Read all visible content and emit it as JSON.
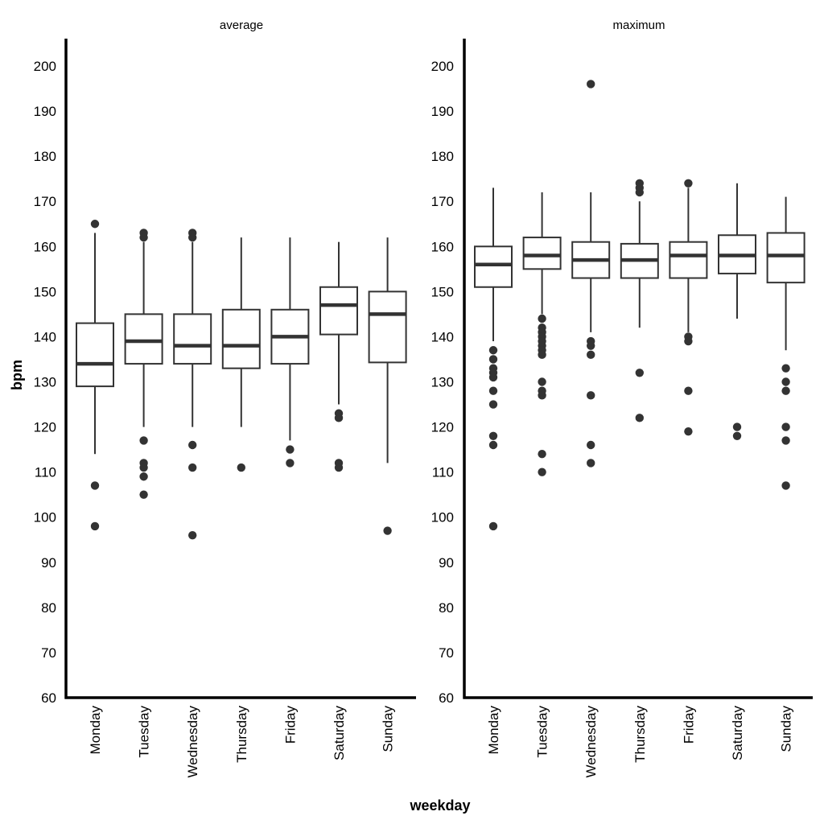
{
  "chart_data": {
    "type": "boxplot",
    "xlabel": "weekday",
    "ylabel": "bpm",
    "ylim": [
      60,
      205
    ],
    "yticks": [
      60,
      70,
      80,
      90,
      100,
      110,
      120,
      130,
      140,
      150,
      160,
      170,
      180,
      190,
      200
    ],
    "categories": [
      "Monday",
      "Tuesday",
      "Wednesday",
      "Thursday",
      "Friday",
      "Saturday",
      "Sunday"
    ],
    "grid": false,
    "facets": [
      {
        "title": "average",
        "boxes": [
          {
            "category": "Monday",
            "lower_whisker": 114,
            "q1": 129,
            "median": 134,
            "q3": 143,
            "upper_whisker": 163,
            "outliers": [
              165,
              107,
              98
            ]
          },
          {
            "category": "Tuesday",
            "lower_whisker": 120,
            "q1": 134,
            "median": 139,
            "q3": 145,
            "upper_whisker": 161,
            "outliers": [
              163,
              162,
              117,
              112,
              111,
              109,
              105
            ]
          },
          {
            "category": "Wednesday",
            "lower_whisker": 120,
            "q1": 134,
            "median": 138,
            "q3": 145,
            "upper_whisker": 161,
            "outliers": [
              163,
              162,
              116,
              111,
              96
            ]
          },
          {
            "category": "Thursday",
            "lower_whisker": 120,
            "q1": 133,
            "median": 138,
            "q3": 146,
            "upper_whisker": 162,
            "outliers": [
              111
            ]
          },
          {
            "category": "Friday",
            "lower_whisker": 117,
            "q1": 134,
            "median": 140,
            "q3": 146,
            "upper_whisker": 162,
            "outliers": [
              115,
              112
            ]
          },
          {
            "category": "Saturday",
            "lower_whisker": 125,
            "q1": 140.5,
            "median": 147,
            "q3": 151,
            "upper_whisker": 161,
            "outliers": [
              123,
              122,
              112,
              111
            ]
          },
          {
            "category": "Sunday",
            "lower_whisker": 112,
            "q1": 134.3,
            "median": 145,
            "q3": 150,
            "upper_whisker": 162,
            "outliers": [
              97
            ]
          }
        ]
      },
      {
        "title": "maximum",
        "boxes": [
          {
            "category": "Monday",
            "lower_whisker": 139,
            "q1": 151,
            "median": 156,
            "q3": 160,
            "upper_whisker": 173,
            "outliers": [
              137,
              135,
              133,
              132,
              131,
              128,
              125,
              118,
              116,
              98
            ]
          },
          {
            "category": "Tuesday",
            "lower_whisker": 145,
            "q1": 155,
            "median": 158,
            "q3": 162,
            "upper_whisker": 172,
            "outliers": [
              144,
              142,
              141,
              140,
              139,
              138,
              137,
              136,
              130,
              128,
              127,
              114,
              110
            ]
          },
          {
            "category": "Wednesday",
            "lower_whisker": 141,
            "q1": 153,
            "median": 157,
            "q3": 161,
            "upper_whisker": 172,
            "outliers": [
              196,
              139,
              138,
              136,
              127,
              116,
              112
            ]
          },
          {
            "category": "Thursday",
            "lower_whisker": 142,
            "q1": 153,
            "median": 157,
            "q3": 160.6,
            "upper_whisker": 170,
            "outliers": [
              174,
              173,
              172,
              132,
              122
            ]
          },
          {
            "category": "Friday",
            "lower_whisker": 141,
            "q1": 153,
            "median": 158,
            "q3": 161,
            "upper_whisker": 173,
            "outliers": [
              174,
              140,
              139,
              128,
              119
            ]
          },
          {
            "category": "Saturday",
            "lower_whisker": 144,
            "q1": 154,
            "median": 158,
            "q3": 162.5,
            "upper_whisker": 174,
            "outliers": [
              120,
              118
            ]
          },
          {
            "category": "Sunday",
            "lower_whisker": 137,
            "q1": 152,
            "median": 158,
            "q3": 163,
            "upper_whisker": 171,
            "outliers": [
              133,
              130,
              128,
              120,
              117,
              107
            ]
          }
        ]
      }
    ]
  }
}
